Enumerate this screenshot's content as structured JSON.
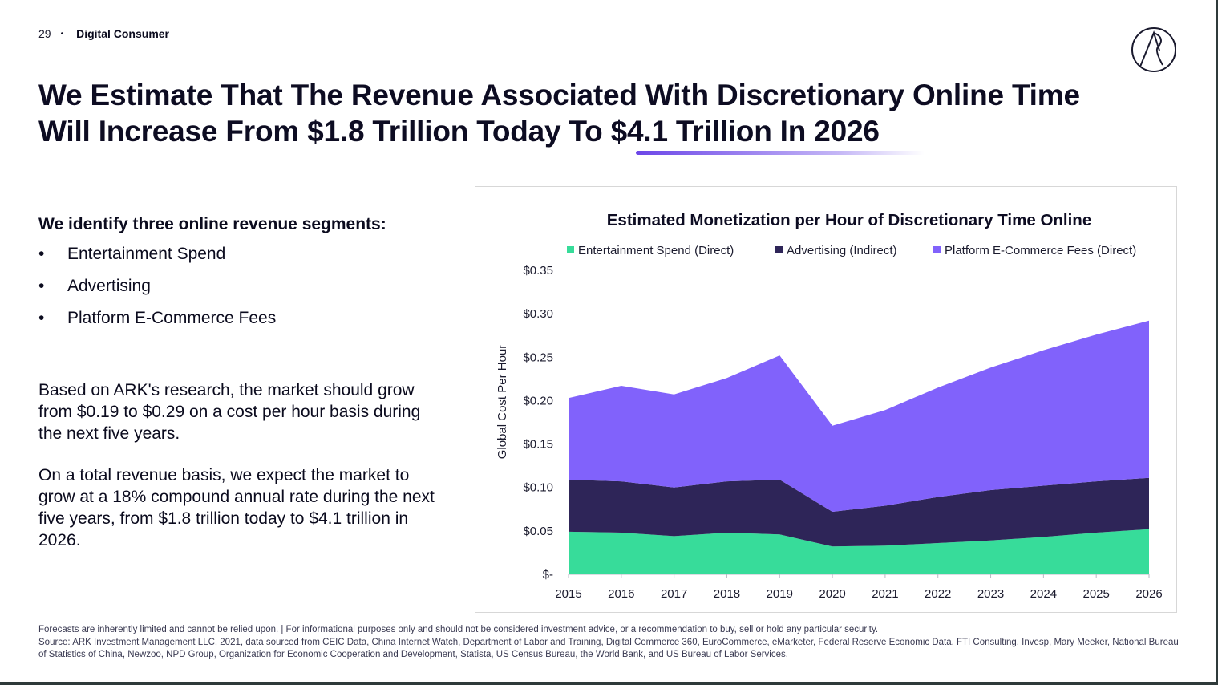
{
  "header": {
    "page_number": "29",
    "separator": "•",
    "section": "Digital Consumer"
  },
  "title": {
    "line1": "We Estimate That The Revenue Associated With Discretionary Online Time",
    "line2_prefix": "Will Increase From $1.8 Trillion Today To ",
    "line2_highlight": "$4.1 Trillion In 2026"
  },
  "left": {
    "segments_heading": "We identify three online revenue segments:",
    "segments": [
      "Entertainment Spend",
      "Advertising",
      "Platform E-Commerce Fees"
    ],
    "bullet": "•",
    "paragraph1": "Based on ARK's research, the market should grow from $0.19 to $0.29 on a cost per hour basis during the next five years.",
    "paragraph2": "On a total revenue basis, we expect the market to grow at a 18% compound annual rate during the next five years, from $1.8 trillion today to $4.1 trillion in 2026."
  },
  "chart_data": {
    "type": "area",
    "stacked": true,
    "title": "Estimated Monetization per Hour of Discretionary Time Online",
    "ylabel": "Global Cost Per Hour",
    "xlabel": "",
    "x": [
      "2015",
      "2016",
      "2017",
      "2018",
      "2019",
      "2020",
      "2021",
      "2022",
      "2023",
      "2024",
      "2025",
      "2026"
    ],
    "ylim": [
      0,
      0.035
    ],
    "yticks": [
      0,
      0.005,
      0.01,
      0.015,
      0.02,
      0.025,
      0.03,
      0.035
    ],
    "ytick_labels": [
      "$-",
      "$0.05",
      "$0.10",
      "$0.15",
      "$0.20",
      "$0.25",
      "$0.30",
      "$0.35"
    ],
    "legend_position": "top",
    "grid": false,
    "series": [
      {
        "name": "Entertainment Spend (Direct)",
        "color": "#37dc9a",
        "values": [
          0.0049,
          0.0048,
          0.0044,
          0.0048,
          0.0046,
          0.0032,
          0.0033,
          0.0036,
          0.0039,
          0.0043,
          0.0048,
          0.0052
        ]
      },
      {
        "name": "Advertising (Indirect)",
        "color": "#2e2558",
        "values": [
          0.006,
          0.0059,
          0.0056,
          0.0059,
          0.0063,
          0.004,
          0.0046,
          0.0053,
          0.0058,
          0.0059,
          0.0059,
          0.0059
        ]
      },
      {
        "name": "Platform E-Commerce Fees (Direct)",
        "color": "#8162fb",
        "values": [
          0.0094,
          0.011,
          0.0107,
          0.0119,
          0.0143,
          0.0099,
          0.011,
          0.0126,
          0.0141,
          0.0156,
          0.0169,
          0.0181
        ]
      }
    ]
  },
  "footer": {
    "line1": "Forecasts are inherently limited and cannot be relied upon. | For informational purposes only and should not be considered investment advice, or a recommendation to buy, sell or hold any particular security.",
    "line2": "Source: ARK Investment Management LLC,  2021, data sourced from CEIC Data, China Internet Watch, Department of Labor and Training, Digital Commerce 360, EuroCommerce, eMarketer, Federal Reserve Economic Data, FTI Consulting, Invesp, Mary Meeker, National Bureau of Statistics of China, Newzoo, NPD Group, Organization for Economic Cooperation and Development, Statista, US Census Bureau, the World Bank, and US Bureau of Labor Services."
  }
}
